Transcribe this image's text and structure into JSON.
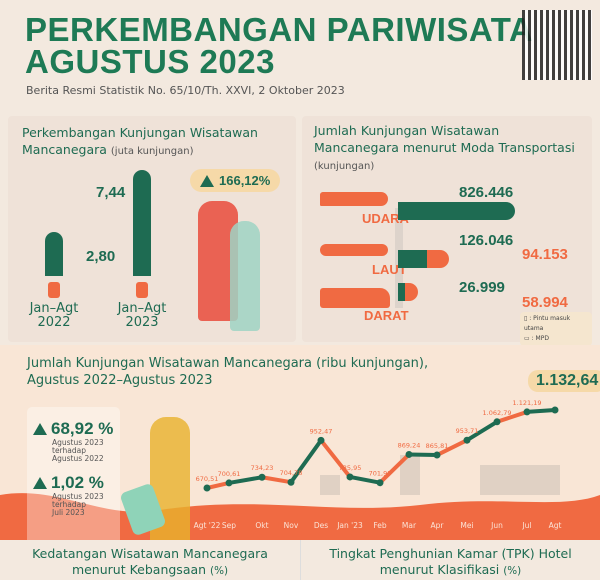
{
  "header": {
    "title_line1": "PERKEMBANGAN PARIWISATA",
    "title_line2": "AGUSTUS 2023",
    "subtitle": "Berita Resmi Statistik No. 65/10/Th. XXVI, 2 Oktober 2023"
  },
  "colors": {
    "green": "#1e6b52",
    "orange": "#f06a42",
    "background": "#f3e9df"
  },
  "panel1": {
    "title": "Perkembangan Kunjungan Wisatawan Mancanegara",
    "unit": "(juta kunjungan)",
    "growth": "166,12%",
    "growth_icon": "triangle-up-icon",
    "bars": [
      {
        "value": "2,80",
        "cat1": "Jan–Agt",
        "cat2": "2022"
      },
      {
        "value": "7,44",
        "cat1": "Jan–Agt",
        "cat2": "2023"
      }
    ]
  },
  "panel2": {
    "title_line1": "Jumlah Kunjungan Wisatawan",
    "title_line2": "Mancanegara menurut Moda Transportasi",
    "unit": "(kunjungan)",
    "modes": [
      {
        "label": "UDARA",
        "main": "826.446",
        "mpd": null,
        "icon": "airplane-icon"
      },
      {
        "label": "LAUT",
        "main": "126.046",
        "mpd": "94.153",
        "icon": "ship-icon"
      },
      {
        "label": "DARAT",
        "main": "26.999",
        "mpd": "58.994",
        "icon": "bus-icon"
      }
    ],
    "legend": [
      {
        "icon": "gate-icon",
        "label": ": Pintu masuk utama"
      },
      {
        "icon": "satellite-phone-icon",
        "label": ": MPD"
      }
    ]
  },
  "line": {
    "title_line1": "Jumlah Kunjungan Wisatawan Mancanegara (ribu kunjungan),",
    "title_line2": "Agustus 2022–Agustus 2023",
    "highlight": "1.132,64",
    "stats": [
      {
        "value": "68,92 %",
        "desc1": "Agustus 2023",
        "desc2": "terhadap",
        "desc3": "Agustus 2022"
      },
      {
        "value": "1,02 %",
        "desc1": "Agustus 2023",
        "desc2": "terhadap",
        "desc3": "Juli 2023"
      }
    ]
  },
  "chart_data": {
    "type": "line",
    "xlabel": "",
    "ylabel": "",
    "categories": [
      "Agt '22",
      "Sep",
      "Okt",
      "Nov",
      "Des",
      "Jan '23",
      "Feb",
      "Mar",
      "Apr",
      "Mei",
      "Jun",
      "Jul",
      "Agt"
    ],
    "values": [
      670.51,
      700.61,
      734.23,
      704.78,
      952.47,
      735.95,
      701.93,
      869.24,
      865.81,
      953.71,
      1062.79,
      1121.19,
      1132.64
    ],
    "value_labels": [
      "670,51",
      "700,61",
      "734,23",
      "704,78",
      "952,47",
      "735,95",
      "701,93",
      "869,24",
      "865,81",
      "953,71",
      "1.062,79",
      "1.121,19",
      ""
    ],
    "grid": false
  },
  "bottom": {
    "left": "Kedatangan Wisatawan Mancanegara",
    "left2": "menurut Kebangsaan",
    "left_unit": "(%)",
    "right": "Tingkat Penghunian Kamar (TPK) Hotel",
    "right2": "menurut Klasifikasi",
    "right_unit": "(%)"
  }
}
